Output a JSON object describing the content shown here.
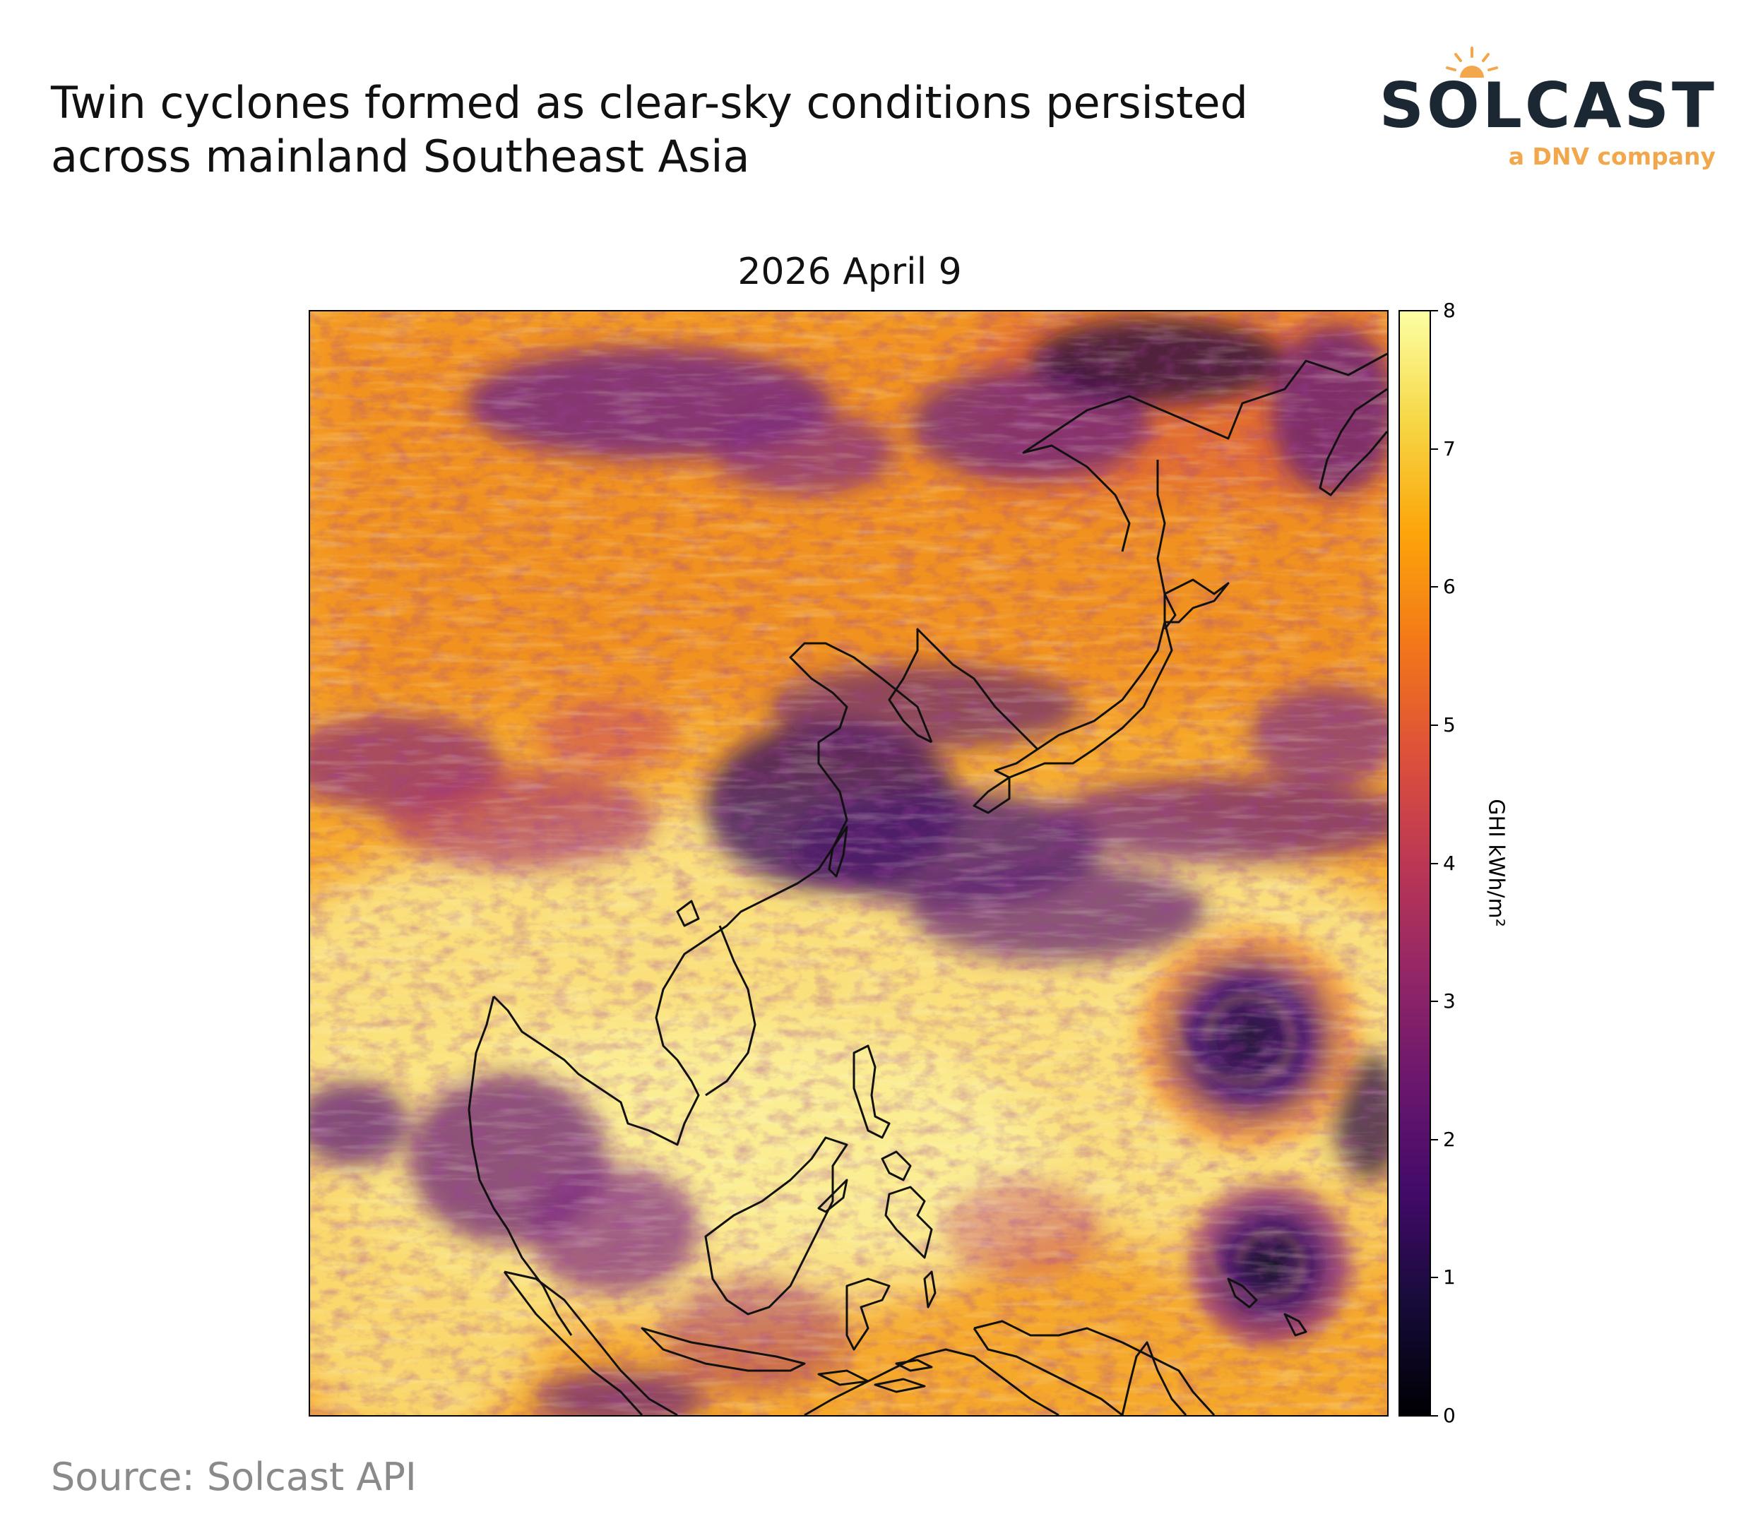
{
  "headline": {
    "line1": "Twin cyclones formed as clear-sky conditions persisted",
    "line2": "across mainland Southeast Asia"
  },
  "logo": {
    "wordmark": "SOLCAST",
    "tagline": "a DNV company",
    "colors": {
      "wordmark": "#1b2733",
      "accent": "#f2a74c"
    }
  },
  "map": {
    "title": "2026 April 9",
    "variable": "GHI",
    "colormap": "inferno",
    "colorbar": {
      "label": "GHI kWh/m²",
      "min": 0,
      "max": 8,
      "ticks": [
        "0",
        "1",
        "2",
        "3",
        "4",
        "5",
        "6",
        "7",
        "8"
      ]
    },
    "features": [
      "coastlines",
      "cyclone-north-east",
      "cyclone-south-east"
    ]
  },
  "source": "Source: Solcast API"
}
